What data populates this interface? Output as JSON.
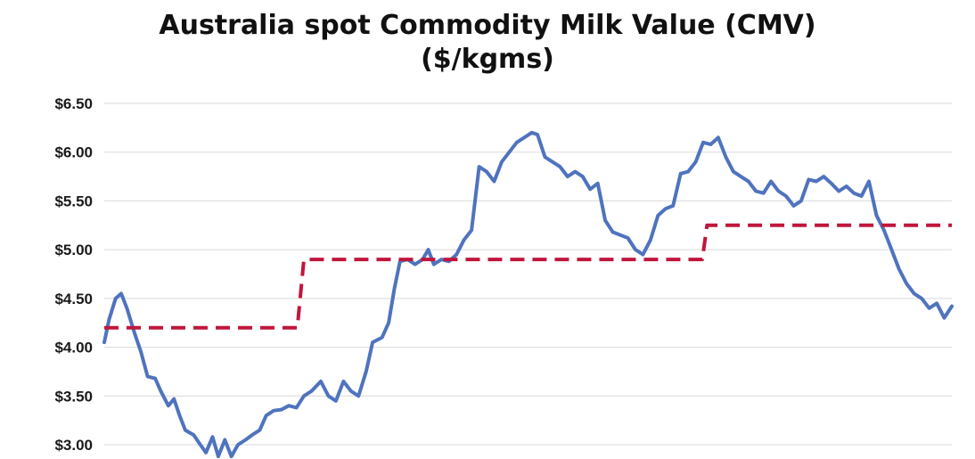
{
  "title_line1": "Australia spot Commodity Milk Value (CMV)",
  "title_line2": "($/kgms)",
  "chart_data": {
    "type": "line",
    "ylim": [
      3.0,
      6.5
    ],
    "yticks": [
      "$6.50",
      "$6.00",
      "$5.50",
      "$5.00",
      "$4.50",
      "$4.00",
      "$3.50",
      "$3.00"
    ],
    "ytick_values": [
      6.5,
      6.0,
      5.5,
      5.0,
      4.5,
      4.0,
      3.5,
      3.0
    ],
    "xlim": [
      0,
      100
    ],
    "grid": true,
    "series": [
      {
        "style": "solid",
        "color": "#4f73be",
        "points": [
          [
            0,
            4.05
          ],
          [
            0.5,
            4.28
          ],
          [
            1.2,
            4.5
          ],
          [
            1.8,
            4.55
          ],
          [
            2.4,
            4.4
          ],
          [
            3.2,
            4.15
          ],
          [
            3.9,
            3.95
          ],
          [
            4.6,
            3.7
          ],
          [
            5.4,
            3.68
          ],
          [
            6.0,
            3.55
          ],
          [
            6.8,
            3.4
          ],
          [
            7.4,
            3.47
          ],
          [
            8.0,
            3.3
          ],
          [
            8.6,
            3.15
          ],
          [
            9.5,
            3.1
          ],
          [
            10.2,
            3.0
          ],
          [
            10.8,
            2.92
          ],
          [
            11.5,
            3.08
          ],
          [
            12.1,
            2.88
          ],
          [
            12.8,
            3.05
          ],
          [
            13.5,
            2.88
          ],
          [
            14.2,
            3.0
          ],
          [
            15.0,
            3.05
          ],
          [
            15.7,
            3.1
          ],
          [
            16.5,
            3.15
          ],
          [
            17.2,
            3.3
          ],
          [
            18.0,
            3.35
          ],
          [
            18.8,
            3.36
          ],
          [
            19.6,
            3.4
          ],
          [
            20.4,
            3.38
          ],
          [
            21.2,
            3.5
          ],
          [
            22.0,
            3.55
          ],
          [
            23.0,
            3.65
          ],
          [
            23.8,
            3.5
          ],
          [
            24.6,
            3.45
          ],
          [
            25.4,
            3.65
          ],
          [
            26.2,
            3.55
          ],
          [
            27.0,
            3.5
          ],
          [
            27.8,
            3.75
          ],
          [
            28.5,
            4.05
          ],
          [
            29.5,
            4.1
          ],
          [
            30.2,
            4.25
          ],
          [
            30.8,
            4.6
          ],
          [
            31.4,
            4.88
          ],
          [
            32.2,
            4.9
          ],
          [
            33.0,
            4.85
          ],
          [
            33.8,
            4.9
          ],
          [
            34.4,
            5.0
          ],
          [
            35.0,
            4.85
          ],
          [
            35.8,
            4.9
          ],
          [
            36.6,
            4.88
          ],
          [
            37.4,
            4.95
          ],
          [
            38.2,
            5.1
          ],
          [
            39.0,
            5.2
          ],
          [
            39.8,
            5.85
          ],
          [
            40.6,
            5.8
          ],
          [
            41.4,
            5.7
          ],
          [
            42.2,
            5.9
          ],
          [
            43.0,
            6.0
          ],
          [
            43.8,
            6.1
          ],
          [
            44.6,
            6.15
          ],
          [
            45.4,
            6.2
          ],
          [
            46.0,
            6.18
          ],
          [
            46.8,
            5.95
          ],
          [
            47.6,
            5.9
          ],
          [
            48.4,
            5.85
          ],
          [
            49.2,
            5.75
          ],
          [
            50.0,
            5.8
          ],
          [
            50.8,
            5.75
          ],
          [
            51.6,
            5.62
          ],
          [
            52.4,
            5.68
          ],
          [
            53.2,
            5.3
          ],
          [
            54.0,
            5.18
          ],
          [
            54.8,
            5.15
          ],
          [
            55.6,
            5.12
          ],
          [
            56.4,
            5.0
          ],
          [
            57.2,
            4.95
          ],
          [
            58.0,
            5.1
          ],
          [
            58.8,
            5.35
          ],
          [
            59.6,
            5.42
          ],
          [
            60.4,
            5.45
          ],
          [
            61.2,
            5.78
          ],
          [
            62.0,
            5.8
          ],
          [
            62.8,
            5.9
          ],
          [
            63.6,
            6.1
          ],
          [
            64.4,
            6.08
          ],
          [
            65.2,
            6.15
          ],
          [
            66.0,
            5.95
          ],
          [
            66.8,
            5.8
          ],
          [
            67.6,
            5.75
          ],
          [
            68.4,
            5.7
          ],
          [
            69.2,
            5.6
          ],
          [
            70.0,
            5.58
          ],
          [
            70.8,
            5.7
          ],
          [
            71.6,
            5.6
          ],
          [
            72.4,
            5.55
          ],
          [
            73.2,
            5.45
          ],
          [
            74.0,
            5.5
          ],
          [
            74.8,
            5.72
          ],
          [
            75.6,
            5.7
          ],
          [
            76.4,
            5.75
          ],
          [
            77.2,
            5.68
          ],
          [
            78.0,
            5.6
          ],
          [
            78.8,
            5.65
          ],
          [
            79.6,
            5.58
          ],
          [
            80.4,
            5.55
          ],
          [
            81.2,
            5.7
          ],
          [
            82.0,
            5.35
          ],
          [
            82.8,
            5.2
          ],
          [
            83.6,
            5.0
          ],
          [
            84.4,
            4.8
          ],
          [
            85.2,
            4.65
          ],
          [
            86.0,
            4.55
          ],
          [
            86.8,
            4.5
          ],
          [
            87.6,
            4.4
          ],
          [
            88.4,
            4.45
          ],
          [
            89.2,
            4.3
          ],
          [
            90.0,
            4.42
          ]
        ]
      },
      {
        "style": "dashed",
        "color": "#c0163b",
        "points": [
          [
            0,
            4.2
          ],
          [
            20.5,
            4.2
          ],
          [
            21.2,
            4.9
          ],
          [
            63.5,
            4.9
          ],
          [
            64.0,
            5.25
          ],
          [
            90.0,
            5.25
          ]
        ]
      }
    ]
  }
}
